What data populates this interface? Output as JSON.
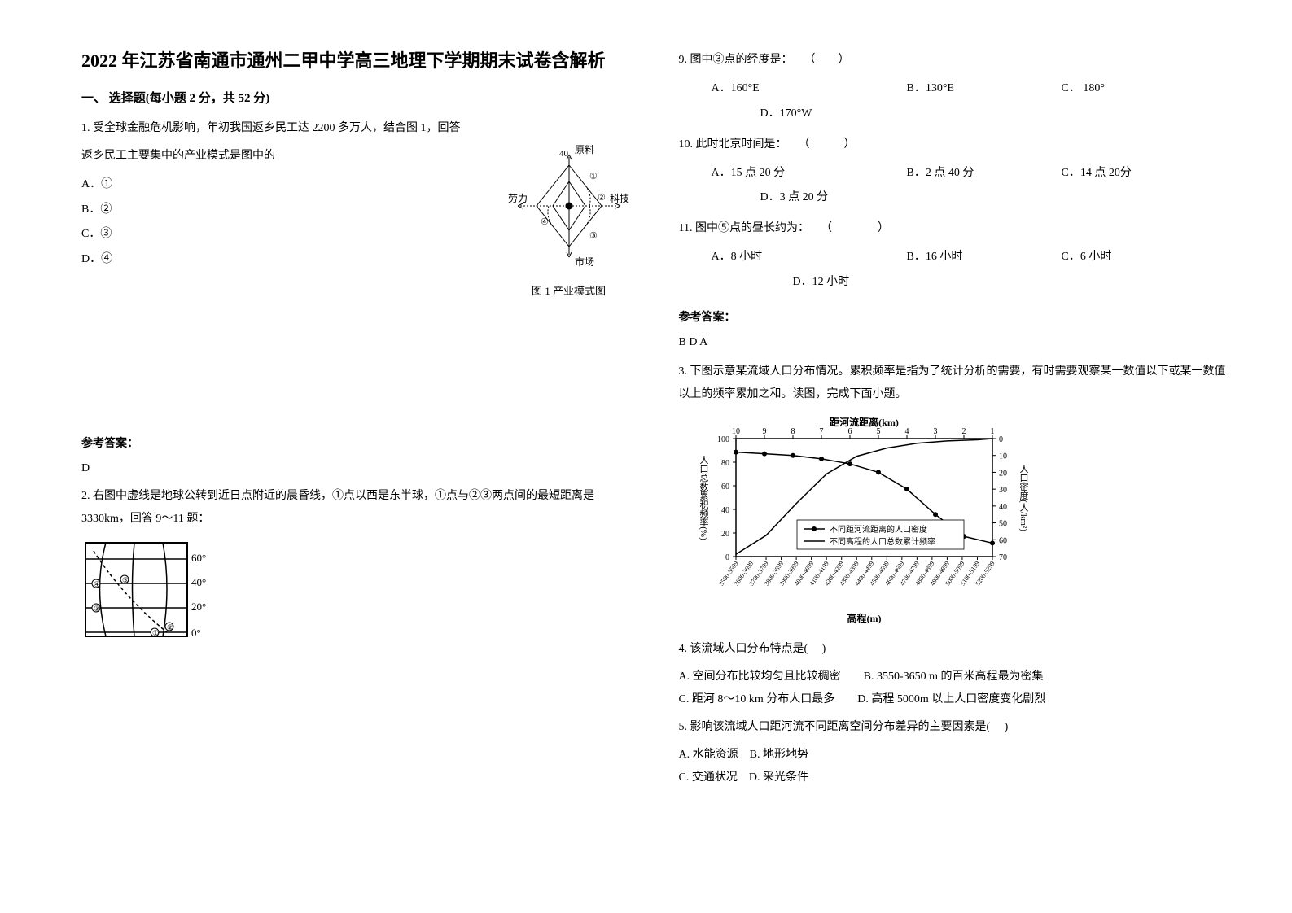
{
  "title": "2022 年江苏省南通市通州二甲中学高三地理下学期期末试卷含解析",
  "section1": "一、 选择题(每小题 2 分，共 52 分)",
  "q1": {
    "stem": "1. 受全球金融危机影响，年初我国返乡民工达 2200 多万人，结合图 1，回答",
    "sub": "返乡民工主要集中的产业模式是图中的",
    "optA": "A．①",
    "optB": "B．②",
    "optC": "C．③",
    "optD": "D．④",
    "fig_caption": "图 1 产业模式图",
    "fig_labels": {
      "top": "原料",
      "left": "劳力",
      "right": "科技",
      "bottom": "市场",
      "scale": "40"
    }
  },
  "ans_label": "参考答案：",
  "q1_ans": "D",
  "q2": {
    "stem": "2. 右图中虚线是地球公转到近日点附近的晨昏线，①点以西是东半球，①点与②③两点间的最短距离是 3330km，回答 9～11 题：",
    "lat_labels": [
      "60°",
      "40°",
      "20°",
      "0°"
    ]
  },
  "q9": {
    "stem": "9. 图中③点的经度是：　　（　　）",
    "a": "A．160°E",
    "b": "B．130°E",
    "c": "C． 180°",
    "d": "D．170°W"
  },
  "q10": {
    "stem": "10. 此时北京时间是：　　（　　　）",
    "a": "A．15 点 20 分",
    "b": "B．2 点 40 分",
    "c": "C．14 点 20分",
    "d": "D．3 点 20 分"
  },
  "q11": {
    "stem": "11. 图中⑤点的昼长约为：　　（　　　　）",
    "a": "A．8 小时",
    "b": "B．16 小时",
    "c": "C．6 小时",
    "d": "D．12 小时"
  },
  "q9_11_ans": "B  D  A",
  "q3": {
    "stem": "3. 下图示意某流域人口分布情况。累积频率是指为了统计分析的需要，有时需要观察某一数值以下或某一数值以上的频率累加之和。读图，完成下面小题。",
    "chart": {
      "axis_top_title": "距河流距离(km)",
      "axis_top_ticks": [
        "10",
        "9",
        "8",
        "7",
        "6",
        "5",
        "4",
        "3",
        "2",
        "1"
      ],
      "axis_left_title": "人口总数累积频率(%)",
      "axis_left_ticks": [
        "100",
        "80",
        "60",
        "40",
        "20",
        "0"
      ],
      "axis_right_title": "人口密度(人/km²)",
      "axis_right_ticks": [
        "0",
        "10",
        "20",
        "30",
        "40",
        "50",
        "60",
        "70"
      ],
      "axis_bottom_title": "高程(m)",
      "axis_bottom_ticks": [
        "3500-3599",
        "3600-3699",
        "3700-3799",
        "3800-3899",
        "3900-3999",
        "4000-4099",
        "4100-4199",
        "4200-4299",
        "4300-4399",
        "4400-4499",
        "4500-4599",
        "4600-4699",
        "4700-4799",
        "4800-4899",
        "4900-4999",
        "5000-5099",
        "5100-5199",
        "5200-5299"
      ],
      "legend1": "不同距河流距离的人口密度",
      "legend2": "不同高程的人口总数累计频率",
      "series_density": {
        "x_km": [
          10,
          9,
          8,
          7,
          6,
          5,
          4,
          3,
          2,
          1
        ],
        "y_density": [
          8,
          9,
          10,
          12,
          15,
          20,
          30,
          45,
          58,
          62
        ],
        "color": "#000000",
        "marker": "circle",
        "line_width": 1.5
      },
      "series_cumfreq": {
        "x_idx": [
          0,
          2,
          4,
          6,
          8,
          10,
          12,
          14,
          16,
          17
        ],
        "y_pct": [
          2,
          18,
          45,
          70,
          85,
          92,
          96,
          98,
          99,
          100
        ],
        "color": "#000000",
        "marker": "none",
        "line_width": 1.5
      },
      "xlim_top": [
        10,
        1
      ],
      "ylim_left": [
        0,
        100
      ],
      "ylim_right": [
        0,
        70
      ],
      "background": "#ffffff",
      "grid_color": "#000000"
    }
  },
  "q4": {
    "stem": "4.  该流域人口分布特点是(　 )",
    "a": "A.  空间分布比较均匀且比较稠密",
    "b": "B.  3550-3650 m 的百米高程最为密集",
    "c": "C.  距河 8～10 km 分布人口最多",
    "d": "D.  高程 5000m 以上人口密度变化剧烈"
  },
  "q5": {
    "stem": "5.  影响该流域人口距河流不同距离空间分布差异的主要因素是(　 )",
    "a": "A.  水能资源",
    "b": "B.  地形地势",
    "c": "C.  交通状况",
    "d": "D.  采光条件"
  }
}
